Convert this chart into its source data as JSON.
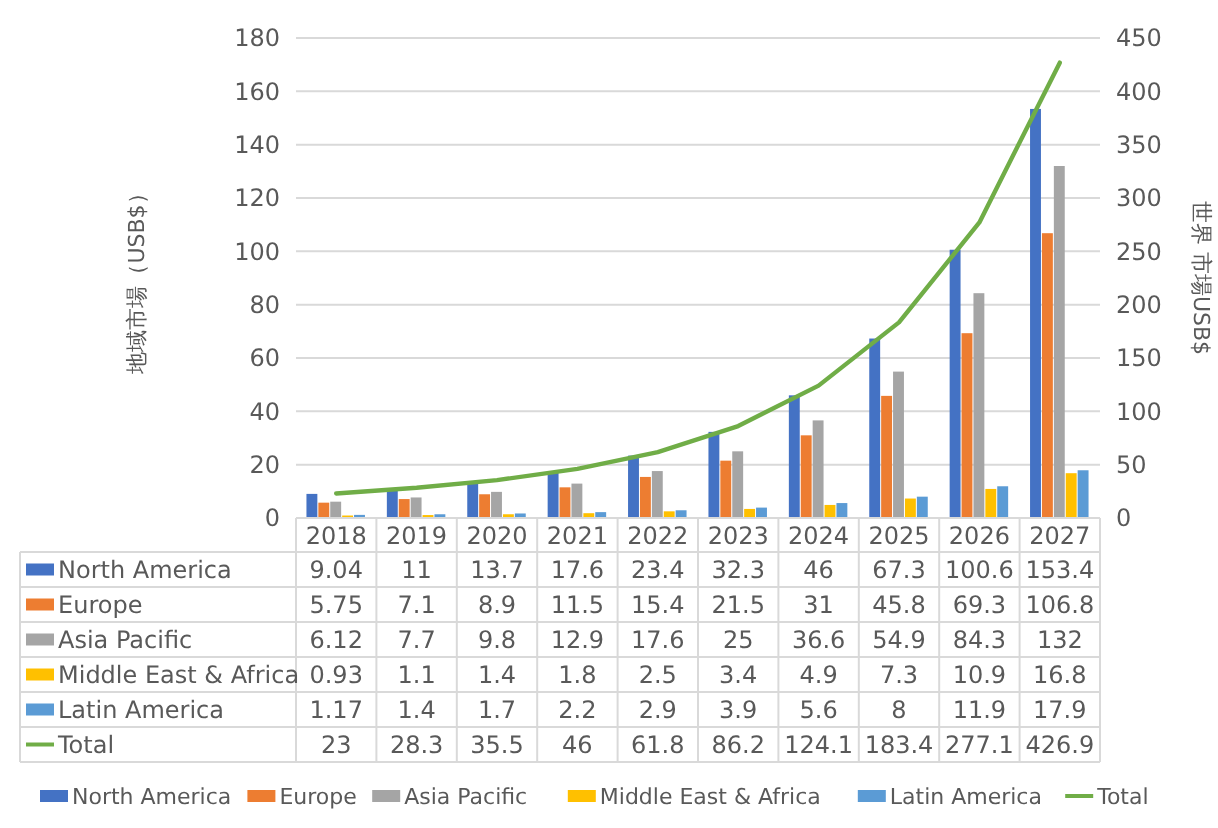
{
  "chart_data": {
    "type": "bar",
    "ylabel": "地域市場（USB$）",
    "y2label": "世界 市場USB$",
    "categories": [
      "2018",
      "2019",
      "2020",
      "2021",
      "2022",
      "2023",
      "2024",
      "2025",
      "2026",
      "2027"
    ],
    "series": [
      {
        "name": "North America",
        "color": "#4472c4",
        "values": [
          9.04,
          11,
          13.7,
          17.6,
          23.4,
          32.3,
          46,
          67.3,
          100.6,
          153.4
        ]
      },
      {
        "name": "Europe",
        "color": "#ed7d31",
        "values": [
          5.75,
          7.1,
          8.9,
          11.5,
          15.4,
          21.5,
          31,
          45.8,
          69.3,
          106.8
        ]
      },
      {
        "name": "Asia Pacific",
        "color": "#a5a5a5",
        "values": [
          6.12,
          7.7,
          9.8,
          12.9,
          17.6,
          25,
          36.6,
          54.9,
          84.3,
          132
        ]
      },
      {
        "name": "Middle East & Africa",
        "color": "#ffc000",
        "values": [
          0.93,
          1.1,
          1.4,
          1.8,
          2.5,
          3.4,
          4.9,
          7.3,
          10.9,
          16.8
        ]
      },
      {
        "name": "Latin America",
        "color": "#5b9bd5",
        "values": [
          1.17,
          1.4,
          1.7,
          2.2,
          2.9,
          3.9,
          5.6,
          8,
          11.9,
          17.9
        ]
      },
      {
        "name": "Total",
        "type": "line",
        "axis": "y2",
        "color": "#70ad47",
        "values": [
          23,
          28.3,
          35.5,
          46,
          61.8,
          86.2,
          124.1,
          183.4,
          277.1,
          426.9
        ]
      }
    ],
    "ylim": [
      0,
      180
    ],
    "yticks": [
      0,
      20,
      40,
      60,
      80,
      100,
      120,
      140,
      160,
      180
    ],
    "y2lim": [
      0,
      450
    ],
    "y2ticks": [
      0,
      50,
      100,
      150,
      200,
      250,
      300,
      350,
      400,
      450
    ],
    "grid": "y",
    "legend": "bottom",
    "data_labels": true,
    "marker": "none",
    "line_style": "solid"
  }
}
